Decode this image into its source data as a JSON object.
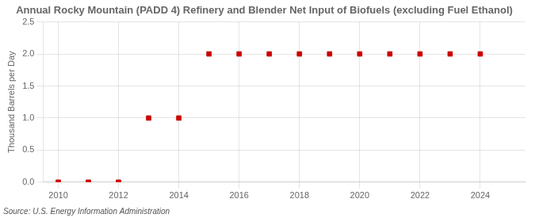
{
  "chart_data": {
    "type": "scatter",
    "title": "Annual Rocky Mountain (PADD 4) Refinery and Blender Net Input of Biofuels (excluding Fuel Ethanol)",
    "ylabel": "Thousand Barrels per Day",
    "annotations": [
      "Source: U.S. Energy Information Administration"
    ],
    "x": [
      2010,
      2011,
      2012,
      2013,
      2014,
      2015,
      2016,
      2017,
      2018,
      2019,
      2020,
      2021,
      2022,
      2023,
      2024
    ],
    "values": [
      0.0,
      0.0,
      0.0,
      1.0,
      1.0,
      2.0,
      2.0,
      2.0,
      2.0,
      2.0,
      2.0,
      2.0,
      2.0,
      2.0,
      2.0
    ],
    "color": "#cc0000",
    "marker": "square",
    "xlim": [
      2009.5,
      2025.5
    ],
    "xticks": [
      2010,
      2012,
      2014,
      2016,
      2018,
      2020,
      2022,
      2024
    ],
    "ylim": [
      0.0,
      2.5
    ],
    "yticks": [
      {
        "value": 0.0,
        "label": "0.0"
      },
      0.5,
      {
        "value": 1.0,
        "label": "1.0"
      },
      1.5,
      {
        "value": 2.0,
        "label": "2.0"
      },
      2.5
    ],
    "grid": true
  }
}
